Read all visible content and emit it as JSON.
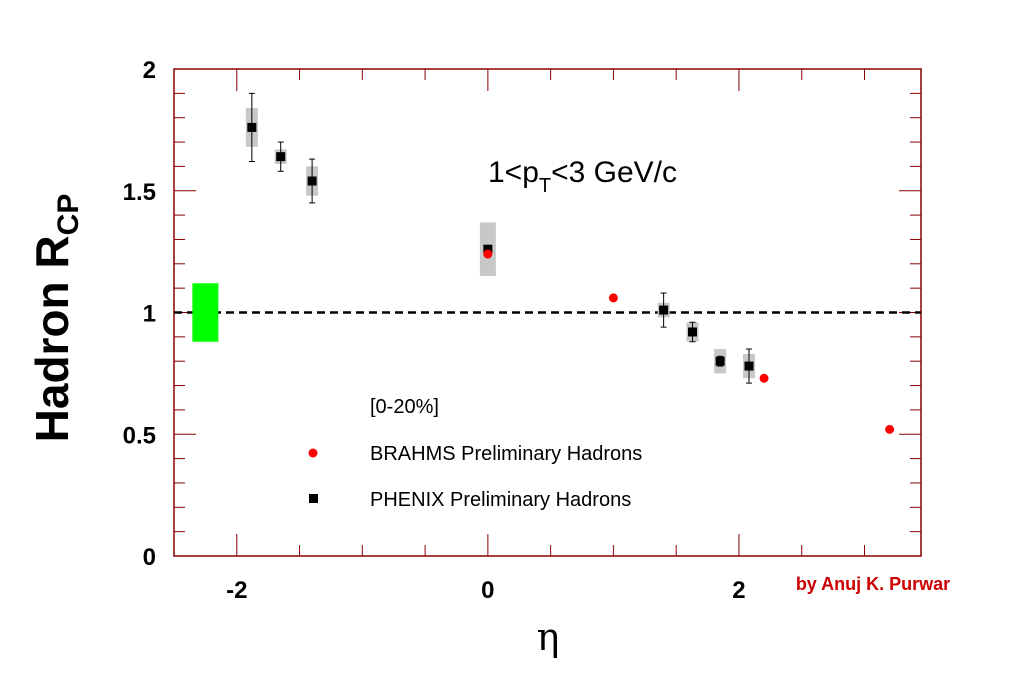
{
  "chart_data": {
    "type": "scatter",
    "xlabel": "η",
    "ylabel": {
      "main": "Hadron R",
      "sub": "CP"
    },
    "xlim": [
      -2.5,
      3.45
    ],
    "ylim": [
      0,
      2
    ],
    "x_ticks": [
      "-2",
      "0",
      "2"
    ],
    "x_tick_values": [
      -2,
      0,
      2
    ],
    "y_ticks": [
      "0",
      "0.5",
      "1",
      "1.5",
      "2"
    ],
    "y_tick_values": [
      0,
      0.5,
      1,
      1.5,
      2
    ],
    "reference_line": {
      "y": 1.0,
      "style": "dashed"
    },
    "annotation": {
      "prefix": "1<p",
      "sub": "T",
      "suffix": "<3 GeV/c"
    },
    "legend_header": "[0-20%]",
    "legend_placement": "lower-left",
    "normalization_box": {
      "x": -2.25,
      "y_low": 0.88,
      "y_high": 1.12,
      "color": "#00ff00"
    },
    "series": [
      {
        "name": "BRAHMS Preliminary Hadrons",
        "marker": "circle",
        "color": "#ff0000",
        "points": [
          {
            "x": 0.0,
            "y": 1.24
          },
          {
            "x": 1.0,
            "y": 1.06
          },
          {
            "x": 2.2,
            "y": 0.73
          },
          {
            "x": 3.2,
            "y": 0.52
          }
        ]
      },
      {
        "name": "PHENIX Preliminary Hadrons",
        "marker": "square",
        "color": "#000000",
        "points": [
          {
            "x": -1.88,
            "y": 1.76,
            "err": 0.14,
            "sys": 0.08
          },
          {
            "x": -1.65,
            "y": 1.64,
            "err": 0.06,
            "sys": 0.03
          },
          {
            "x": -1.4,
            "y": 1.54,
            "err": 0.09,
            "sys": 0.06
          },
          {
            "x": 0.0,
            "y": 1.26,
            "err": 0.0,
            "sys": 0.11
          },
          {
            "x": 1.4,
            "y": 1.01,
            "err": 0.07,
            "sys": 0.03
          },
          {
            "x": 1.63,
            "y": 0.92,
            "err": 0.04,
            "sys": 0.04
          },
          {
            "x": 1.85,
            "y": 0.8,
            "err": 0.02,
            "sys": 0.05
          },
          {
            "x": 2.08,
            "y": 0.78,
            "err": 0.07,
            "sys": 0.05
          }
        ]
      }
    ],
    "colors": {
      "frame": "#8b0000",
      "sys_box": "#c8c8c8",
      "credit": "#cc0000"
    }
  },
  "credit": "by Anuj K. Purwar"
}
